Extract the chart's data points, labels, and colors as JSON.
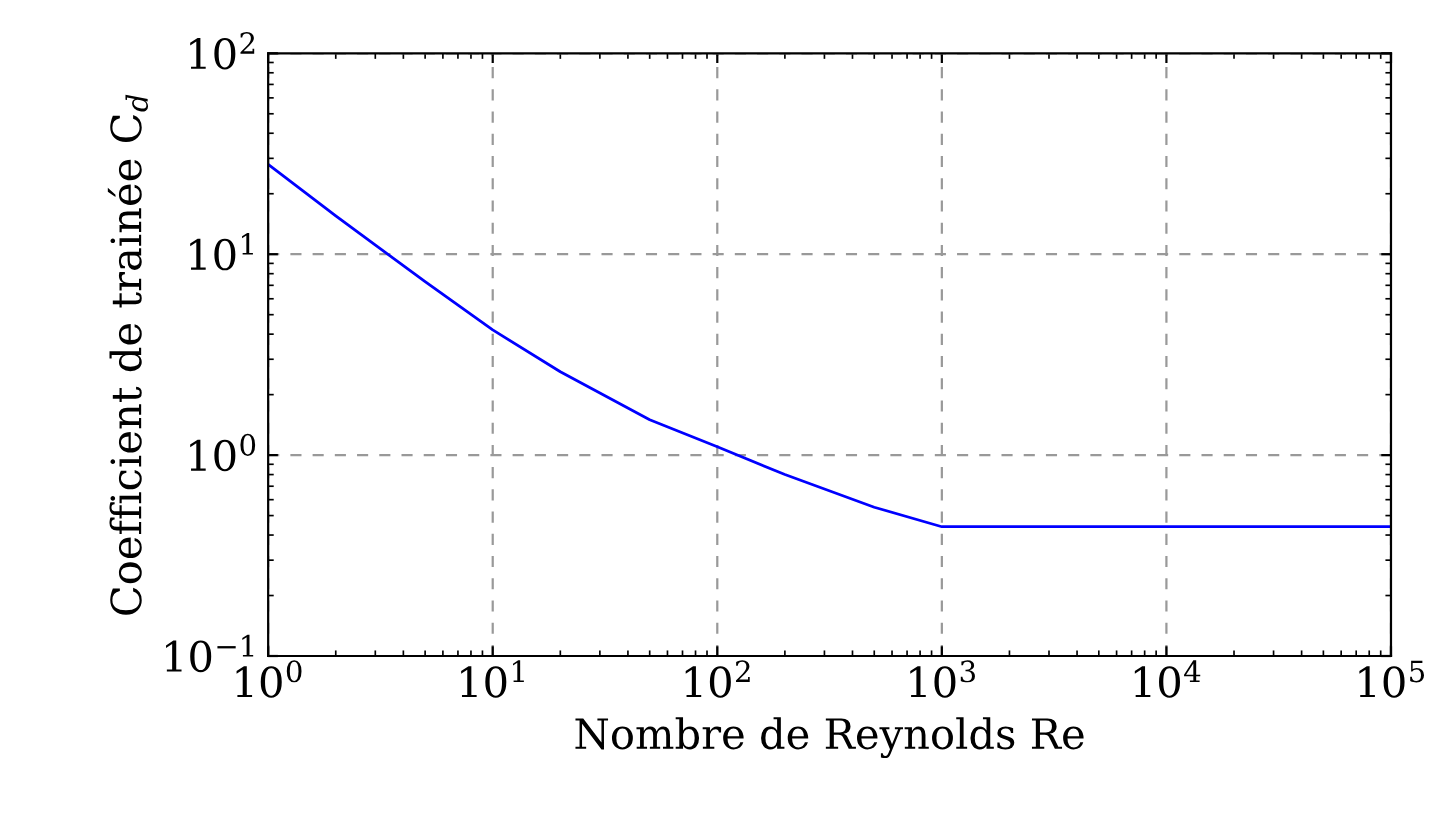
{
  "chart_data": {
    "type": "line",
    "xlabel": "Nombre de Reynolds Re",
    "ylabel": "Coefficient de trainée C$_{d}$",
    "log": "xy",
    "grid": true,
    "line_style": "solid",
    "marker": "none",
    "x": [
      1,
      2,
      5,
      10,
      20,
      50,
      100,
      200,
      500,
      1000,
      100000
    ],
    "series": [
      {
        "color": "#0000ff",
        "values": [
          28,
          15.5,
          7.3,
          4.2,
          2.6,
          1.5,
          1.1,
          0.8,
          0.55,
          0.44,
          0.44
        ]
      }
    ],
    "xlim": [
      1,
      100000
    ],
    "ylim": [
      0.1,
      100
    ],
    "xticks": [
      {
        "value": 1,
        "label": "10$^{0}$"
      },
      {
        "value": 10,
        "label": "10$^{1}$"
      },
      {
        "value": 100,
        "label": "10$^{2}$"
      },
      {
        "value": 1000,
        "label": "10$^{3}$"
      },
      {
        "value": 10000,
        "label": "10$^{4}$"
      },
      {
        "value": 100000,
        "label": "10$^{5}$"
      }
    ],
    "yticks": [
      {
        "value": 0.1,
        "label": "10$^{−1}$"
      },
      {
        "value": 1,
        "label": "10$^{0}$"
      },
      {
        "value": 10,
        "label": "10$^{1}$"
      },
      {
        "value": 100,
        "label": "10$^{2}$"
      }
    ]
  }
}
